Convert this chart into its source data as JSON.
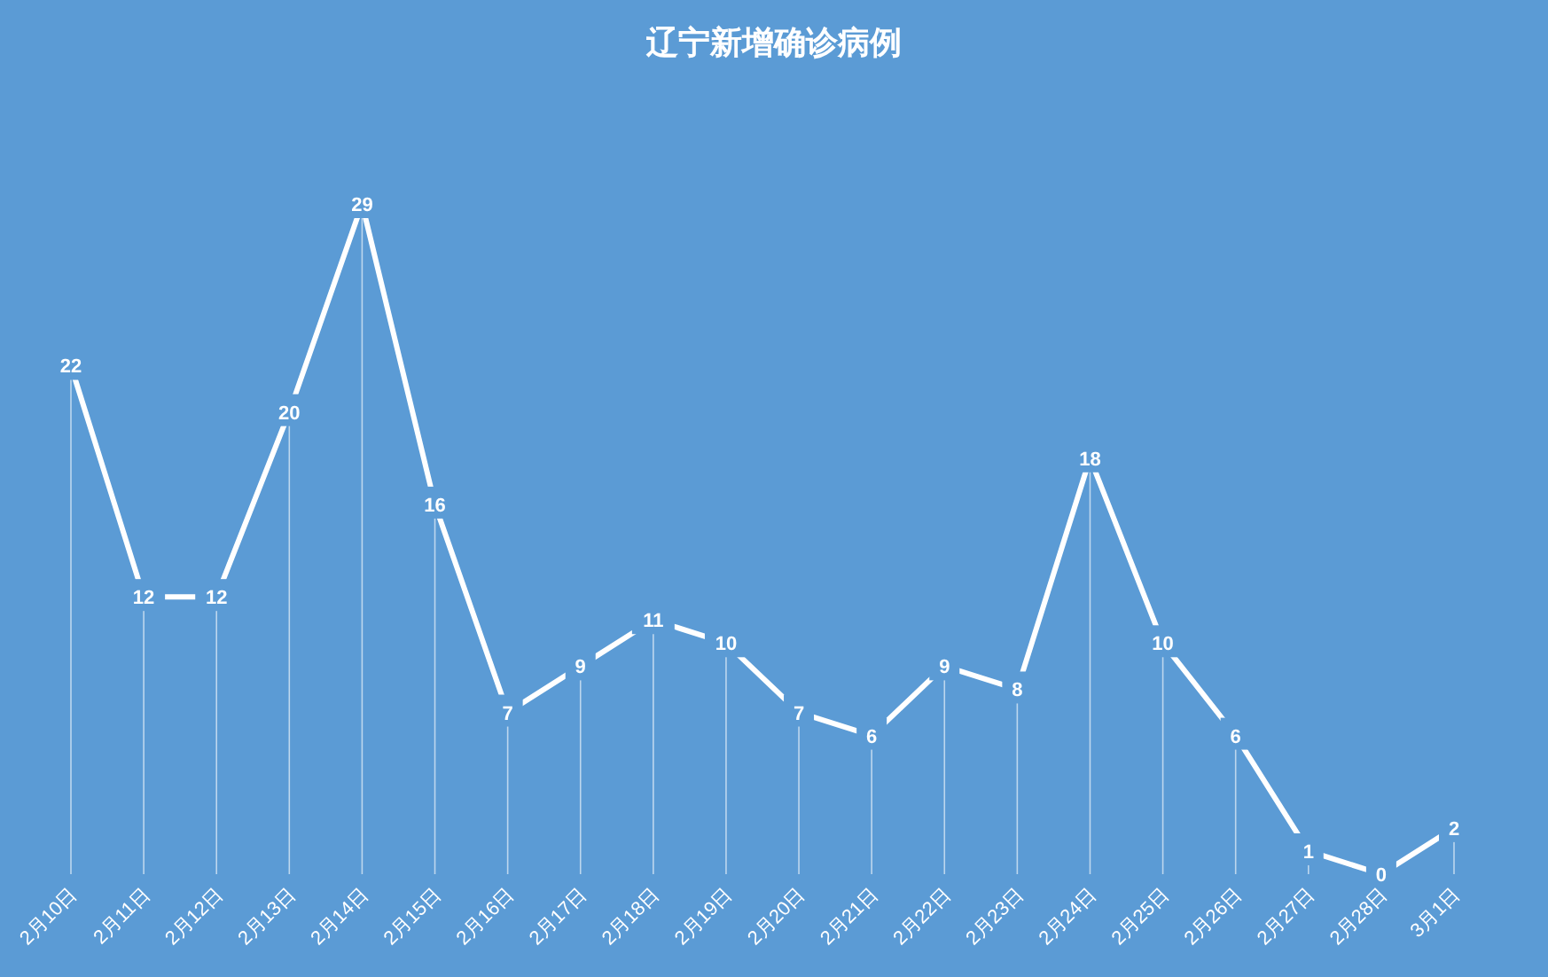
{
  "chart_data": {
    "type": "line",
    "title": "辽宁新增确诊病例",
    "categories": [
      "2月10日",
      "2月11日",
      "2月12日",
      "2月13日",
      "2月14日",
      "2月15日",
      "2月16日",
      "2月17日",
      "2月18日",
      "2月19日",
      "2月20日",
      "2月21日",
      "2月22日",
      "2月23日",
      "2月24日",
      "2月25日",
      "2月26日",
      "2月27日",
      "2月28日",
      "3月1日"
    ],
    "values": [
      22,
      12,
      12,
      20,
      29,
      16,
      7,
      9,
      11,
      10,
      7,
      6,
      9,
      8,
      18,
      10,
      6,
      1,
      0,
      2
    ],
    "color": "#ffffff",
    "data_labels": true,
    "marker": "none"
  }
}
